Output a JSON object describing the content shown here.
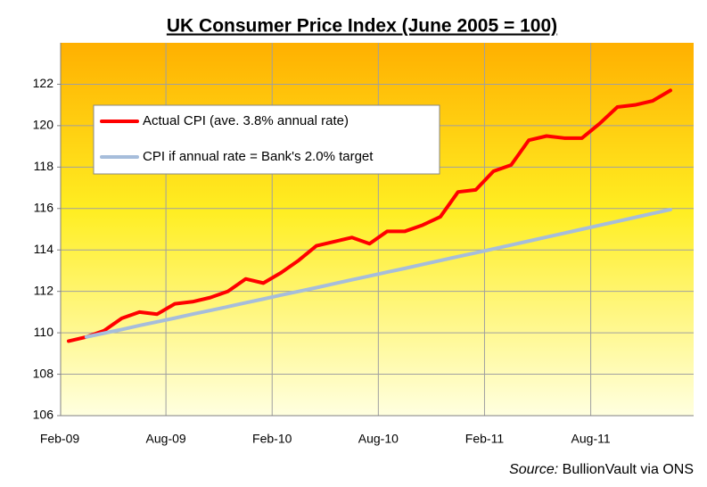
{
  "chart_data": {
    "type": "line",
    "title": "UK Consumer Price Index (June 2005 = 100)",
    "categories": [
      "Feb-09",
      null,
      null,
      null,
      null,
      null,
      "Aug-09",
      null,
      null,
      null,
      null,
      null,
      "Feb-10",
      null,
      null,
      null,
      null,
      null,
      "Aug-10",
      null,
      null,
      null,
      null,
      null,
      "Feb-11",
      null,
      null,
      null,
      null,
      null,
      "Aug-11",
      null,
      null,
      null,
      null
    ],
    "series": [
      {
        "name": "Actual CPI (ave. 3.8% annual rate)",
        "color": "#ff0000",
        "values": [
          109.6,
          109.8,
          110.1,
          110.7,
          111.0,
          110.9,
          111.4,
          111.5,
          111.7,
          112.0,
          112.6,
          112.4,
          112.9,
          113.5,
          114.2,
          114.4,
          114.6,
          114.3,
          114.9,
          114.9,
          115.2,
          115.6,
          116.8,
          116.9,
          117.8,
          118.1,
          119.3,
          119.5,
          119.4,
          119.4,
          120.1,
          120.9,
          121.0,
          121.2,
          121.7
        ]
      },
      {
        "name": "CPI if annual rate = Bank's 2.0% target",
        "color": "#a6bddb",
        "values": [
          null,
          109.8,
          109.98,
          110.16,
          110.35,
          110.53,
          110.71,
          110.9,
          111.08,
          111.26,
          111.45,
          111.63,
          111.82,
          112.0,
          112.18,
          112.37,
          112.56,
          112.74,
          112.93,
          113.11,
          113.3,
          113.49,
          113.68,
          113.86,
          114.05,
          114.24,
          114.43,
          114.62,
          114.81,
          115.0,
          115.19,
          115.38,
          115.57,
          115.76,
          115.95
        ]
      }
    ],
    "ylim": [
      106,
      124
    ],
    "yticks": [
      106,
      108,
      110,
      112,
      114,
      116,
      118,
      120,
      122
    ],
    "grid": true,
    "source_label": "Source:",
    "source_text": "BullionVault via ONS"
  }
}
